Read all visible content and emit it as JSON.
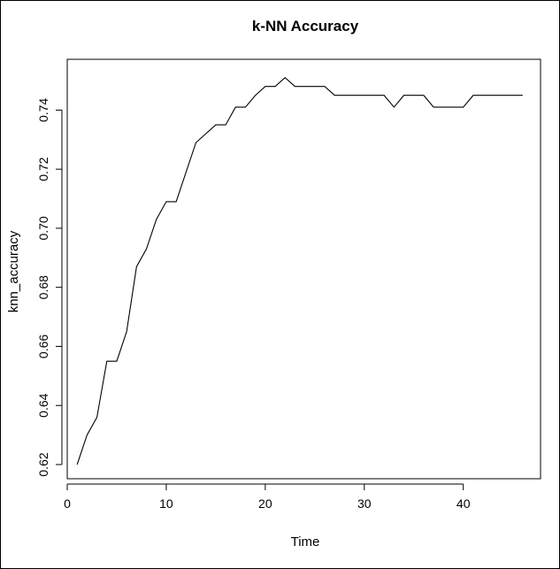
{
  "chart_data": {
    "type": "line",
    "title": "k-NN Accuracy",
    "xlabel": "Time",
    "ylabel": "knn_accuracy",
    "xlim": [
      0,
      47.8
    ],
    "ylim": [
      0.6152,
      0.7572
    ],
    "xticks": [
      0,
      10,
      20,
      30,
      40
    ],
    "yticks": [
      0.62,
      0.64,
      0.66,
      0.68,
      0.7,
      0.72,
      0.74
    ],
    "ytick_labels": [
      "0.62",
      "0.64",
      "0.66",
      "0.68",
      "0.70",
      "0.72",
      "0.74"
    ],
    "grid": false,
    "series": [
      {
        "color": "#000000",
        "x": [
          1,
          2,
          3,
          4,
          5,
          6,
          7,
          8,
          9,
          10,
          11,
          12,
          13,
          14,
          15,
          16,
          17,
          18,
          19,
          20,
          21,
          22,
          23,
          24,
          25,
          26,
          27,
          28,
          29,
          30,
          31,
          32,
          33,
          34,
          35,
          36,
          37,
          38,
          39,
          40,
          41,
          42,
          43,
          44,
          45,
          46
        ],
        "values": [
          0.62,
          0.63,
          0.636,
          0.655,
          0.655,
          0.665,
          0.687,
          0.693,
          0.703,
          0.709,
          0.709,
          0.719,
          0.729,
          0.732,
          0.735,
          0.735,
          0.741,
          0.741,
          0.745,
          0.748,
          0.748,
          0.751,
          0.748,
          0.748,
          0.748,
          0.748,
          0.745,
          0.745,
          0.745,
          0.745,
          0.745,
          0.745,
          0.741,
          0.745,
          0.745,
          0.745,
          0.741,
          0.741,
          0.741,
          0.741,
          0.745,
          0.745,
          0.745,
          0.745,
          0.745,
          0.745
        ]
      }
    ]
  }
}
